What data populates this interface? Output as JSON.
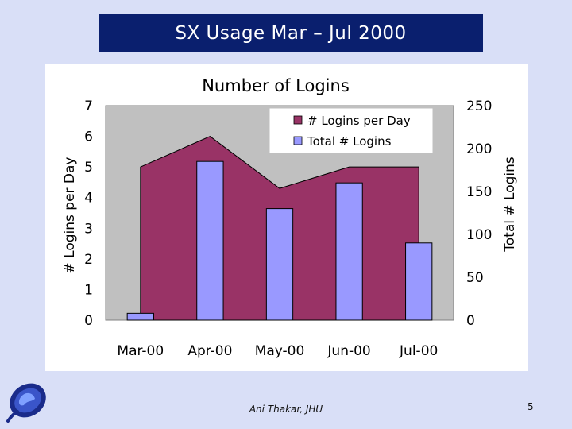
{
  "slide": {
    "title": "SX Usage Mar – Jul 2000",
    "author": "Ani Thakar, JHU",
    "page_number": "5",
    "colors": {
      "background": "#d9dff7",
      "title_bar": "#0a1f6e",
      "plot_area": "#c0c0c0",
      "area_series": "#993366",
      "bar_series": "#9999ff"
    }
  },
  "chart_data": {
    "type": "bar",
    "title": "Number of Logins",
    "categories": [
      "Mar-00",
      "Apr-00",
      "May-00",
      "Jun-00",
      "Jul-00"
    ],
    "ylabel": "# Logins per Day",
    "y2label": "Total # Logins",
    "ylim": [
      0,
      7
    ],
    "y2lim": [
      0,
      250
    ],
    "yticks": [
      "0",
      "1",
      "2",
      "3",
      "4",
      "5",
      "6",
      "7"
    ],
    "y2ticks": [
      "0",
      "50",
      "100",
      "150",
      "200",
      "250"
    ],
    "series": [
      {
        "name": "# Logins per Day",
        "type": "area",
        "axis": "left",
        "values": [
          5.0,
          6.0,
          4.3,
          5.0,
          5.0
        ]
      },
      {
        "name": "Total # Logins",
        "type": "bar",
        "axis": "right",
        "values": [
          8,
          185,
          130,
          160,
          90
        ]
      }
    ],
    "legend": "top-right",
    "grid": false
  }
}
